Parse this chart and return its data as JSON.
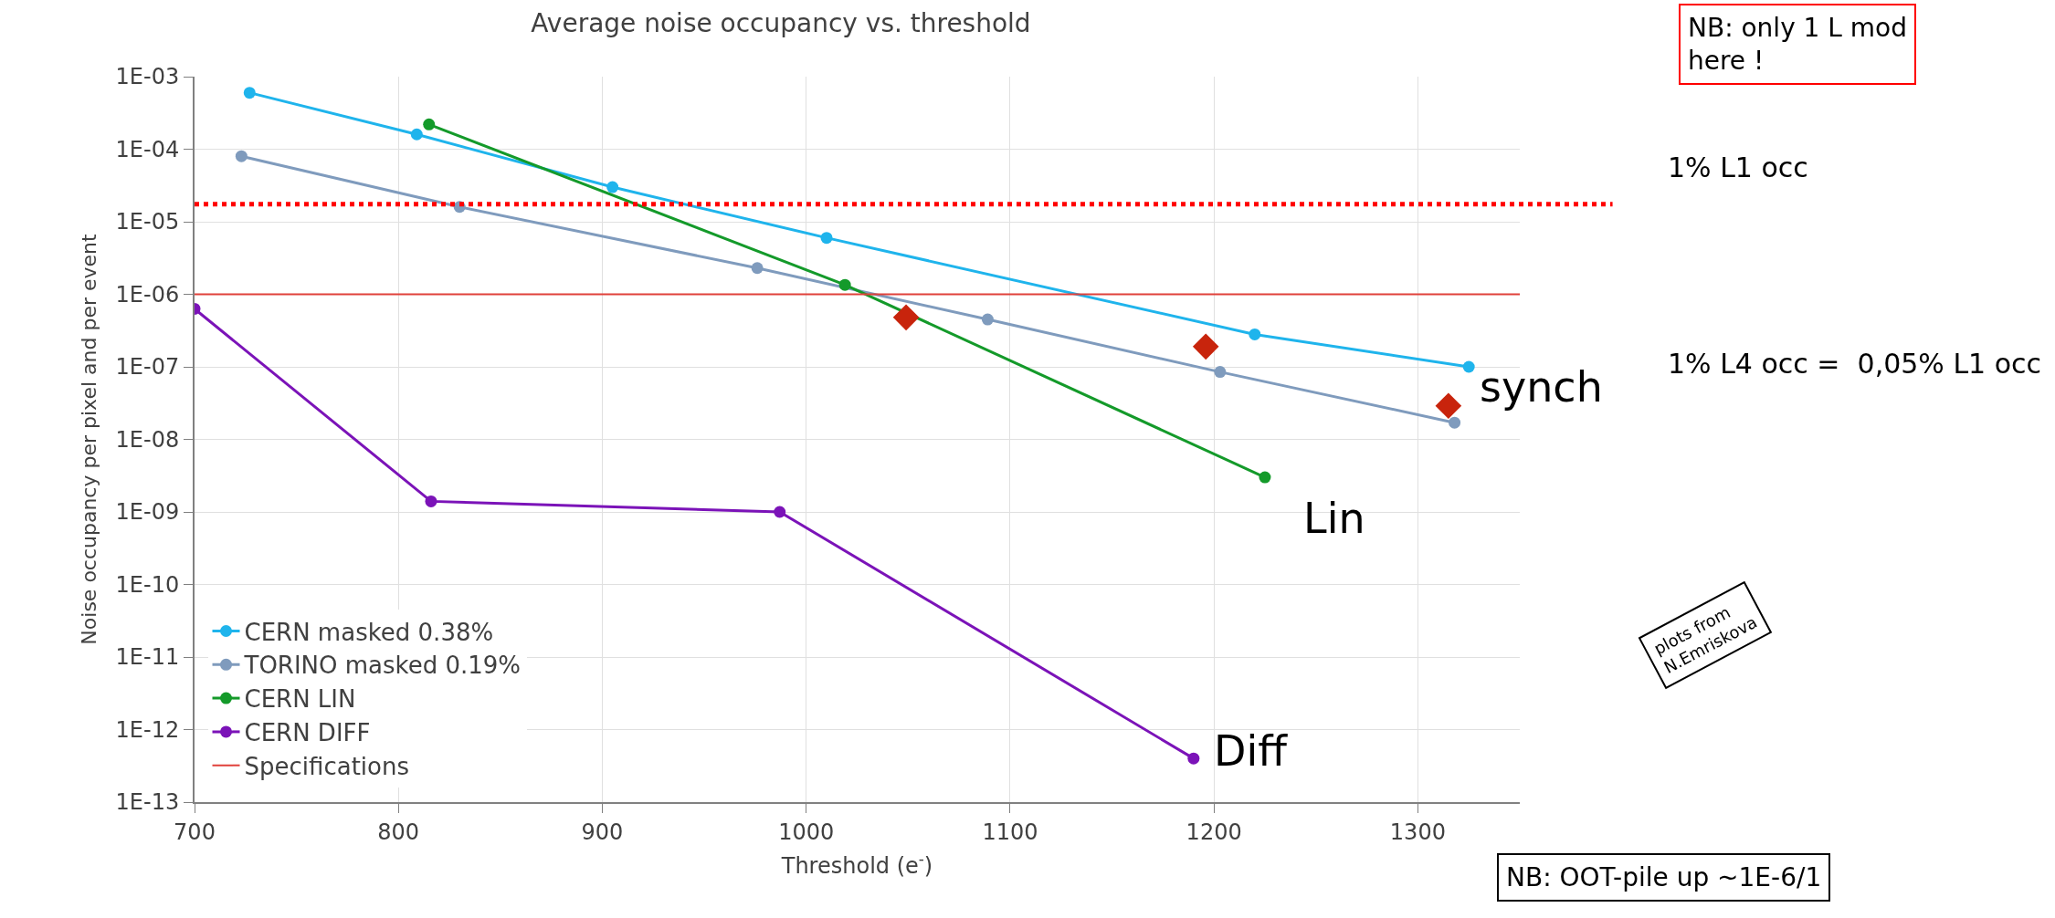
{
  "chart_data": {
    "type": "line",
    "title": "Average noise occupancy vs. threshold",
    "xlabel": "Threshold (e$^{-}$)",
    "ylabel": "Noise occupancy per pixel and per event",
    "xlim": [
      700,
      1350
    ],
    "xticks": [
      700,
      800,
      900,
      1000,
      1100,
      1200,
      1300
    ],
    "ylim": [
      1e-13,
      0.001
    ],
    "yticks": [
      {
        "value": 1e-13,
        "label": "1E-13"
      },
      {
        "value": 1e-12,
        "label": "1E-12"
      },
      {
        "value": 1e-11,
        "label": "1E-11"
      },
      {
        "value": 1e-10,
        "label": "1E-10"
      },
      {
        "value": 1e-09,
        "label": "1E-09"
      },
      {
        "value": 1e-08,
        "label": "1E-08"
      },
      {
        "value": 1e-07,
        "label": "1E-07"
      },
      {
        "value": 1e-06,
        "label": "1E-06"
      },
      {
        "value": 1e-05,
        "label": "1E-05"
      },
      {
        "value": 0.0001,
        "label": "1E-04"
      },
      {
        "value": 0.001,
        "label": "1E-03"
      }
    ],
    "log": "y",
    "grid": true,
    "legend": "bottom left",
    "marker": "circle",
    "line_style": "solid",
    "series": [
      {
        "name": "CERN masked 0.38%",
        "color": "#1fb4ec",
        "x": [
          727,
          809,
          905,
          1010,
          1220,
          1325
        ],
        "values": [
          0.0006,
          0.00016,
          3e-05,
          6e-06,
          2.8e-07,
          1e-07
        ]
      },
      {
        "name": "TORINO masked 0.19%",
        "color": "#7f9bbd",
        "x": [
          723,
          830,
          976,
          1089,
          1203,
          1318
        ],
        "values": [
          8e-05,
          1.6e-05,
          2.3e-06,
          4.5e-07,
          8.5e-08,
          1.7e-08
        ]
      },
      {
        "name": "CERN LIN",
        "color": "#149a2a",
        "x": [
          815,
          1019,
          1225
        ],
        "values": [
          0.00022,
          1.35e-06,
          3e-09
        ]
      },
      {
        "name": "CERN DIFF",
        "color": "#7b13b8",
        "x": [
          700,
          816,
          987,
          1190
        ],
        "values": [
          6.3e-07,
          1.4e-09,
          1e-09,
          4e-13
        ]
      },
      {
        "name": "Specifications",
        "color": "#e0403a",
        "x": [
          700,
          1350
        ],
        "values": [
          1e-06,
          1e-06
        ],
        "marker": "none"
      },
      {
        "type": "scatter",
        "color": "#c8240c",
        "x": [
          1049,
          1196,
          1315
        ],
        "values": [
          4.8e-07,
          1.9e-07,
          2.9e-08
        ],
        "marker": "diamond"
      }
    ],
    "ref_lines": [
      {
        "axis": "y",
        "value": 1.75e-05,
        "label": "1% L1 occ",
        "color": "#ff0000",
        "line_style": "dotted"
      }
    ],
    "annotations": [
      "1% L4 occ =  0,05% L1 occ",
      "plots from\nN.Emriskova",
      "NB: only 1 L mod\nhere !",
      "NB: OOT-pile up ~1E-6/1",
      {
        "text": "synch",
        "x": 1325,
        "y": 1e-07
      },
      {
        "text": "Lin",
        "x": 1225,
        "y": 3e-09
      },
      {
        "text": "Diff",
        "x": 1190,
        "y": 4e-13
      }
    ]
  }
}
